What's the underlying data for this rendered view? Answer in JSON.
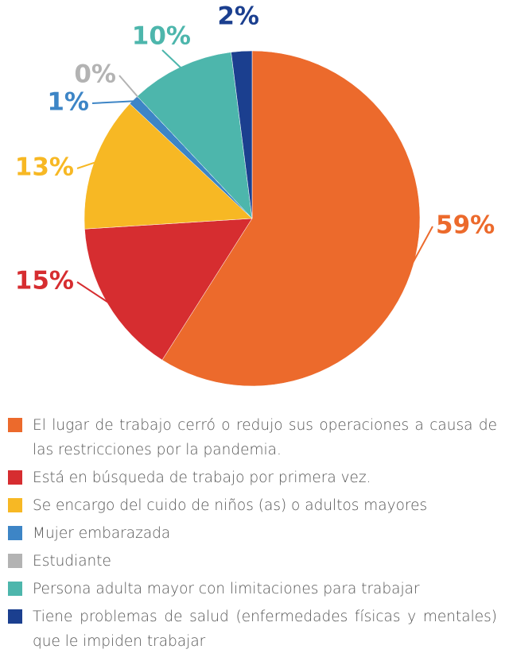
{
  "chart_data": {
    "type": "pie",
    "categories": [
      "El lugar de trabajo cerró o redujo sus operaciones a causa de las restricciones por la pandemia.",
      "Está en búsqueda de trabajo por primera vez.",
      "Se encargo del cuido de niños (as) o adultos mayores",
      "Mujer embarazada",
      "Estudiante",
      "Persona adulta mayor con limitaciones para trabajar",
      "Tiene problemas de salud (enfermedades físicas y mentales) que le impiden trabajar"
    ],
    "values": [
      59,
      15,
      13,
      1,
      0,
      10,
      2
    ],
    "value_labels": [
      "59%",
      "15%",
      "13%",
      "1%",
      "0%",
      "10%",
      "2%"
    ],
    "colors": [
      "#ec6a2c",
      "#d62d30",
      "#f7b824",
      "#3d85c6",
      "#b3b3b3",
      "#4db6ac",
      "#1b3f8f"
    ]
  }
}
